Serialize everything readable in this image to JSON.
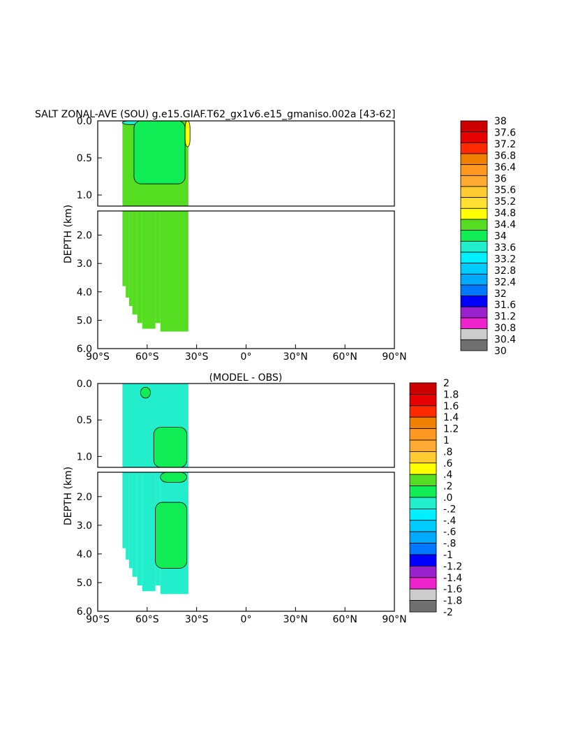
{
  "chart_data": [
    {
      "type": "heatmap",
      "title": "SALT ZONAL-AVE (SOU) g.e15.GIAF.T62_gx1v6.e15_gmaniso.002a [43-62]",
      "ylabel": "DEPTH (km)",
      "xlabel": "",
      "x_ticks": [
        "90°S",
        "60°S",
        "30°S",
        "0°",
        "30°N",
        "60°N",
        "90°N"
      ],
      "x_tick_values": [
        -90,
        -60,
        -30,
        0,
        30,
        60,
        90
      ],
      "y_ticks_upper": [
        "0.0",
        "0.5",
        "1.0"
      ],
      "y_ticks_upper_values": [
        0,
        0.5,
        1.0
      ],
      "y_ticks_lower": [
        "2.0",
        "3.0",
        "4.0",
        "5.0",
        "6.0"
      ],
      "y_ticks_lower_values": [
        2,
        3,
        4,
        5,
        6
      ],
      "xlim": [
        -90,
        90
      ],
      "ylim_upper": [
        0,
        1.15
      ],
      "ylim_lower": [
        1.15,
        6
      ],
      "colorbar_labels": [
        "38",
        "37.6",
        "37.2",
        "36.8",
        "36.4",
        "36",
        "35.6",
        "35.2",
        "34.8",
        "34.4",
        "34",
        "33.6",
        "33.2",
        "32.8",
        "32.4",
        "32",
        "31.6",
        "31.2",
        "30.8",
        "30.4",
        "30"
      ],
      "colorbar_colors": [
        "#cc0000",
        "#e60000",
        "#ff2a00",
        "#f08000",
        "#ff9922",
        "#ffaa33",
        "#ffcc33",
        "#ffe033",
        "#ffff00",
        "#55dd22",
        "#11ee55",
        "#22eecc",
        "#00f0ff",
        "#00ccff",
        "#00aaff",
        "#0077ff",
        "#0000ff",
        "#9922cc",
        "#ee22cc",
        "#cccccc",
        "#707070"
      ],
      "fill_color": "#55dd22",
      "regions": [
        {
          "name": "salinity-33.6-34.0-surface",
          "color": "#22eecc",
          "lat_range": [
            -75,
            -50
          ],
          "depth_range": [
            0,
            0.05
          ]
        },
        {
          "name": "salinity-34.0-34.4",
          "color": "#11ee55",
          "lat_range": [
            -68,
            -37
          ],
          "depth_range": [
            0,
            0.85
          ]
        },
        {
          "name": "salinity-34.8-35.2",
          "color": "#ffff00",
          "lat_range": [
            -37,
            -34
          ],
          "depth_range": [
            0,
            0.35
          ]
        }
      ]
    },
    {
      "type": "heatmap",
      "title": "(MODEL - OBS)",
      "ylabel": "DEPTH (km)",
      "xlabel": "",
      "x_ticks": [
        "90°S",
        "60°S",
        "30°S",
        "0°",
        "30°N",
        "60°N",
        "90°N"
      ],
      "x_tick_values": [
        -90,
        -60,
        -30,
        0,
        30,
        60,
        90
      ],
      "y_ticks_upper": [
        "0.0",
        "0.5",
        "1.0"
      ],
      "y_ticks_upper_values": [
        0,
        0.5,
        1.0
      ],
      "y_ticks_lower": [
        "2.0",
        "3.0",
        "4.0",
        "5.0",
        "6.0"
      ],
      "y_ticks_lower_values": [
        2,
        3,
        4,
        5,
        6
      ],
      "xlim": [
        -90,
        90
      ],
      "ylim_upper": [
        0,
        1.15
      ],
      "ylim_lower": [
        1.15,
        6
      ],
      "colorbar_labels": [
        "2",
        "1.8",
        "1.6",
        "1.4",
        "1.2",
        "1",
        ".8",
        ".6",
        ".4",
        ".2",
        ".0",
        "-.2",
        "-.4",
        "-.6",
        "-.8",
        "-1",
        "-1.2",
        "-1.4",
        "-1.6",
        "-1.8",
        "-2"
      ],
      "colorbar_colors": [
        "#cc0000",
        "#e60000",
        "#ff2a00",
        "#f08000",
        "#ff9922",
        "#ffaa33",
        "#ffcc33",
        "#ffff00",
        "#55dd22",
        "#11ee55",
        "#22eecc",
        "#00f0ff",
        "#00ccff",
        "#00aaff",
        "#0077ff",
        "#0000ff",
        "#9922cc",
        "#ee22cc",
        "#cccccc",
        "#707070"
      ],
      "fill_color": "#22eecc",
      "regions": [
        {
          "name": "diff-0-0.2-near-surface",
          "color": "#11ee55",
          "lat_range": [
            -64,
            -58
          ],
          "depth_range": [
            0.05,
            0.2
          ]
        },
        {
          "name": "diff-0-0.2-upper",
          "color": "#11ee55",
          "lat_range": [
            -56,
            -36
          ],
          "depth_range": [
            0.6,
            1.15
          ]
        },
        {
          "name": "diff-0-0.2-mid",
          "color": "#11ee55",
          "lat_range": [
            -52,
            -36
          ],
          "depth_range": [
            1.15,
            1.5
          ]
        },
        {
          "name": "diff-0-0.2-deep",
          "color": "#11ee55",
          "lat_range": [
            -55,
            -36
          ],
          "depth_range": [
            2.2,
            4.5
          ]
        }
      ]
    }
  ]
}
